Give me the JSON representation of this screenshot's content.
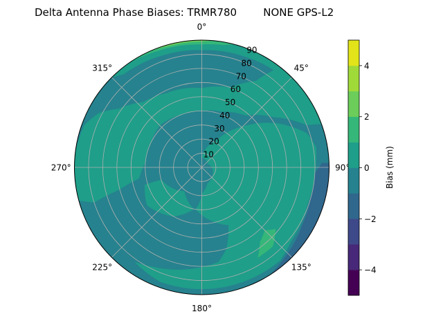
{
  "chart_data": {
    "type": "heatmap",
    "subtype": "polar-filled-contour",
    "title": "Delta Antenna Phase Biases: TRMR780        NONE GPS-L2",
    "angular_axis": {
      "direction": "clockwise",
      "zero_location": "top",
      "tick_labels": [
        "0°",
        "45°",
        "90°",
        "135°",
        "180°",
        "225°",
        "270°",
        "315°"
      ],
      "tick_values": [
        0,
        45,
        90,
        135,
        180,
        225,
        270,
        315
      ]
    },
    "radial_axis": {
      "range": [
        0,
        90
      ],
      "tick_values": [
        10,
        20,
        30,
        40,
        50,
        60,
        70,
        80,
        90
      ],
      "tick_labels": [
        "10",
        "20",
        "30",
        "40",
        "50",
        "60",
        "70",
        "80",
        "90"
      ],
      "label_angle": 22.5
    },
    "grid": true,
    "colorbar": {
      "label": "Bias (mm)",
      "range": [
        -5,
        5
      ],
      "levels": [
        -5,
        -4,
        -3,
        -2,
        -1,
        0,
        1,
        2,
        3,
        4,
        5
      ],
      "tick_values": [
        -4,
        -2,
        0,
        2,
        4
      ],
      "tick_labels": [
        "−4",
        "−2",
        "0",
        "2",
        "4"
      ],
      "colors": [
        "#440154",
        "#482878",
        "#3e4989",
        "#30678d",
        "#26828e",
        "#1f9e89",
        "#35b779",
        "#6ccd5a",
        "#a0da39",
        "#e2e419"
      ],
      "colormap": "viridis"
    },
    "background_level": [
      -1,
      0
    ],
    "regions": [
      {
        "level": [
          0,
          1
        ],
        "points": [
          [
            255,
            90
          ],
          [
            275,
            90
          ],
          [
            290,
            88
          ],
          [
            298,
            82
          ],
          [
            305,
            72
          ],
          [
            318,
            62
          ],
          [
            335,
            58
          ],
          [
            0,
            56
          ],
          [
            20,
            60
          ],
          [
            32,
            72
          ],
          [
            38,
            90
          ],
          [
            70,
            90
          ],
          [
            68,
            80
          ],
          [
            55,
            62
          ],
          [
            40,
            48
          ],
          [
            20,
            42
          ],
          [
            0,
            40
          ],
          [
            340,
            40
          ],
          [
            315,
            42
          ],
          [
            295,
            40
          ],
          [
            275,
            40
          ],
          [
            260,
            45
          ],
          [
            255,
            60
          ],
          [
            252,
            80
          ]
        ]
      },
      {
        "level": [
          0,
          1
        ],
        "points": [
          [
            315,
            90
          ],
          [
            45,
            90
          ],
          [
            40,
            86
          ],
          [
            20,
            84
          ],
          [
            0,
            83
          ],
          [
            340,
            84
          ],
          [
            320,
            86
          ]
        ]
      },
      {
        "level": [
          0,
          1
        ],
        "points": [
          [
            0,
            7
          ],
          [
            29,
            22
          ],
          [
            46,
            42
          ],
          [
            60,
            62
          ],
          [
            72,
            78
          ],
          [
            80,
            82
          ],
          [
            92,
            80
          ],
          [
            110,
            79
          ],
          [
            130,
            82
          ],
          [
            140,
            86
          ],
          [
            160,
            86
          ],
          [
            180,
            86
          ],
          [
            200,
            86
          ],
          [
            215,
            82
          ],
          [
            205,
            78
          ],
          [
            185,
            72
          ],
          [
            170,
            68
          ],
          [
            163,
            60
          ],
          [
            155,
            45
          ],
          [
            175,
            36
          ],
          [
            188,
            30
          ],
          [
            178,
            18
          ],
          [
            160,
            12
          ],
          [
            60,
            5
          ]
        ]
      },
      {
        "level": [
          0,
          1
        ],
        "points": [
          [
            253,
            42
          ],
          [
            253,
            30
          ],
          [
            216,
            21
          ],
          [
            191,
            30
          ],
          [
            210,
            40
          ],
          [
            235,
            47
          ]
        ]
      },
      {
        "level": [
          -2,
          -1
        ],
        "points": [
          [
            88,
            90
          ],
          [
            88,
            85
          ],
          [
            93,
            80
          ],
          [
            105,
            80
          ],
          [
            120,
            82
          ],
          [
            135,
            86
          ],
          [
            148,
            90
          ]
        ]
      },
      {
        "level": [
          1,
          2
        ],
        "points": [
          [
            135,
            63
          ],
          [
            130,
            68
          ],
          [
            138,
            75
          ],
          [
            148,
            75
          ],
          [
            142,
            67
          ]
        ]
      },
      {
        "level": [
          1,
          2
        ],
        "points": [
          [
            325,
            90
          ],
          [
            15,
            90
          ],
          [
            10,
            88
          ],
          [
            0,
            87
          ],
          [
            340,
            88
          ]
        ]
      },
      {
        "level": [
          2,
          3
        ],
        "points": [
          [
            337,
            90
          ],
          [
            5,
            90
          ],
          [
            0,
            89
          ],
          [
            345,
            89
          ]
        ]
      }
    ]
  }
}
